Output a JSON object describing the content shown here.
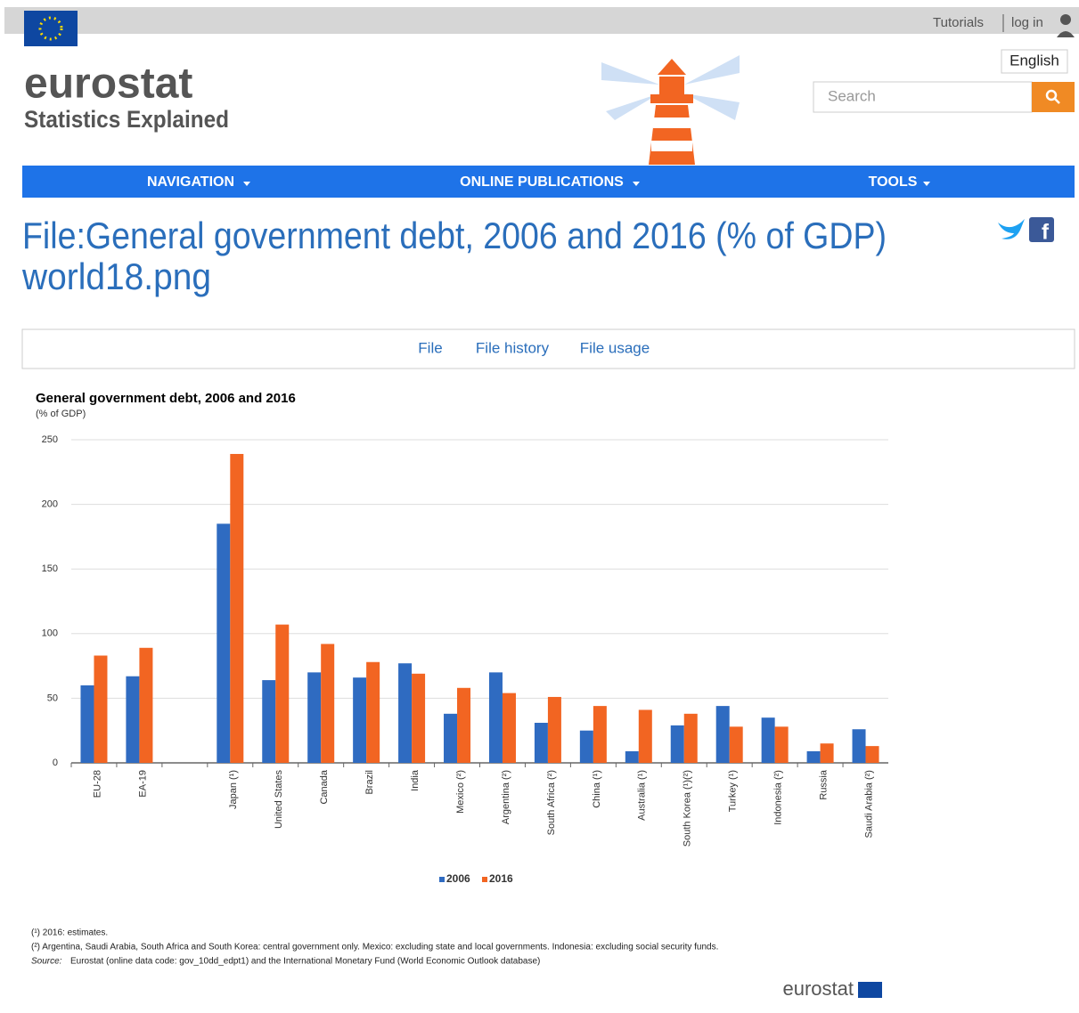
{
  "header": {
    "links": [
      "Tutorials",
      "log in"
    ],
    "language": "English",
    "logo": "eurostat",
    "logo_subtitle": "Statistics Explained",
    "search_placeholder": "Search"
  },
  "nav": [
    "NAVIGATION",
    "ONLINE PUBLICATIONS",
    "TOOLS"
  ],
  "page_title": [
    "File:General government debt, 2006 and 2016 (% of GDP)",
    "world18.png"
  ],
  "tabs": [
    "File",
    "File history",
    "File usage"
  ],
  "chart_data": {
    "type": "bar",
    "title": "General government debt, 2006 and 2016",
    "subtitle": "(% of GDP)",
    "categories": [
      "EU-28",
      "EA-19",
      null,
      "Japan (¹)",
      "United States",
      "Canada",
      "Brazil",
      "India",
      "Mexico (²)",
      "Argentina (²)",
      "South Africa (²)",
      "China (¹)",
      "Australia (¹)",
      "South Korea (¹)(²)",
      "Turkey (¹)",
      "Indonesia (²)",
      "Russia",
      "Saudi Arabia (²)"
    ],
    "series": [
      {
        "name": "2006",
        "color": "#2f6bc1",
        "values": [
          60,
          67,
          null,
          185,
          64,
          70,
          66,
          77,
          38,
          70,
          31,
          25,
          9,
          29,
          44,
          35,
          9,
          26
        ]
      },
      {
        "name": "2016",
        "color": "#f26522",
        "values": [
          83,
          89,
          null,
          239,
          107,
          92,
          78,
          69,
          58,
          54,
          51,
          44,
          41,
          38,
          28,
          28,
          15,
          13
        ]
      }
    ],
    "ylim": [
      0,
      250
    ],
    "yticks": [
      0,
      50,
      100,
      150,
      200,
      250
    ],
    "grid": true,
    "legend": "bottom",
    "footnotes": [
      "(¹) 2016: estimates.",
      "(²) Argentina, Saudi Arabia, South Africa and South Korea: central government only. Mexico: excluding state and local governments. Indonesia: excluding social security funds."
    ],
    "source_label": "Source:",
    "source": "Eurostat (online data code: gov_10dd_edpt1) and the International Monetary Fund (World Economic Outlook database)",
    "logo": "eurostat"
  }
}
